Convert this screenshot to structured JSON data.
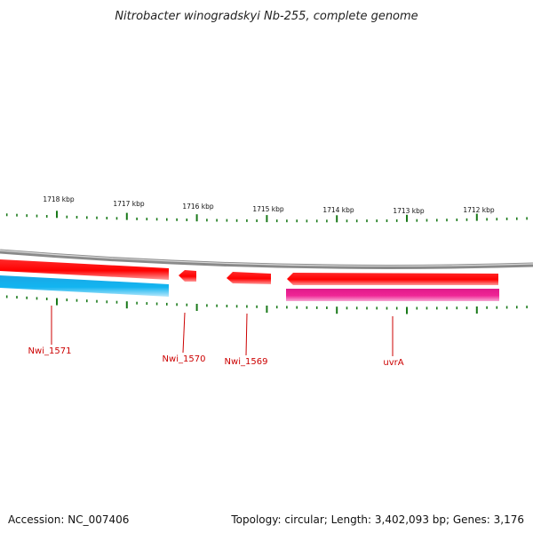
{
  "title": "Nitrobacter winogradskyi Nb-255, complete genome",
  "accession": "Accession: NC_007406",
  "summary": "Topology: circular; Length: 3,402,093 bp; Genes: 3,176",
  "colors": {
    "forward_strand": "#ff0000",
    "reverse_strand_cds": "#1ab2ee",
    "reverse_strand_other": "#e8238f",
    "backbone": "#8a8a8a",
    "ticks": "#1a7a1a",
    "gene_label": "#cc0000"
  },
  "ruler": [
    {
      "label": "1718 kbp"
    },
    {
      "label": "1717 kbp"
    },
    {
      "label": "1716 kbp"
    },
    {
      "label": "1715 kbp"
    },
    {
      "label": "1714 kbp"
    },
    {
      "label": "1713 kbp"
    },
    {
      "label": "1712 kbp"
    }
  ],
  "genes": [
    {
      "label": "Nwi_1571"
    },
    {
      "label": "Nwi_1570"
    },
    {
      "label": "Nwi_1569"
    },
    {
      "label": "uvrA"
    }
  ]
}
